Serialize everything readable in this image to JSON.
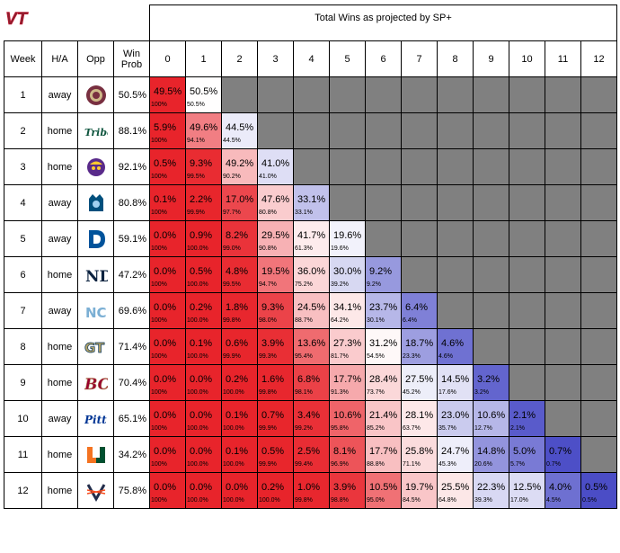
{
  "logo": {
    "text": "VT",
    "color": "#8b1f2e"
  },
  "header": {
    "title": "Total Wins as projected by SP+",
    "week": "Week",
    "ha": "H/A",
    "opp": "Opp",
    "winprob_line1": "Win",
    "winprob_line2": "Prob",
    "win_columns": [
      "0",
      "1",
      "2",
      "3",
      "4",
      "5",
      "6",
      "7",
      "8",
      "9",
      "10",
      "11",
      "12"
    ]
  },
  "colors": {
    "red": "#e8242b",
    "white": "#ffffff",
    "blue": "#4749c5",
    "gray": "#808080"
  },
  "games": [
    {
      "week": "1",
      "ha": "away",
      "opp_icon": "fsu-seminole-icon",
      "win_prob": "50.5%"
    },
    {
      "week": "2",
      "ha": "home",
      "opp_icon": "wm-tribe-icon",
      "win_prob": "88.1%"
    },
    {
      "week": "3",
      "ha": "home",
      "opp_icon": "ecu-pirate-icon",
      "win_prob": "92.1%"
    },
    {
      "week": "4",
      "ha": "away",
      "opp_icon": "odu-monarch-icon",
      "win_prob": "80.8%"
    },
    {
      "week": "5",
      "ha": "away",
      "opp_icon": "duke-d-icon",
      "win_prob": "59.1%"
    },
    {
      "week": "6",
      "ha": "home",
      "opp_icon": "notre-dame-nd-icon",
      "win_prob": "47.2%"
    },
    {
      "week": "7",
      "ha": "away",
      "opp_icon": "unc-nc-icon",
      "win_prob": "69.6%"
    },
    {
      "week": "8",
      "ha": "home",
      "opp_icon": "georgia-tech-gt-icon",
      "win_prob": "71.4%"
    },
    {
      "week": "9",
      "ha": "home",
      "opp_icon": "boston-college-bc-icon",
      "win_prob": "70.4%"
    },
    {
      "week": "10",
      "ha": "away",
      "opp_icon": "pitt-script-icon",
      "win_prob": "65.1%"
    },
    {
      "week": "11",
      "ha": "home",
      "opp_icon": "miami-u-icon",
      "win_prob": "34.2%"
    },
    {
      "week": "12",
      "ha": "home",
      "opp_icon": "virginia-sabres-icon",
      "win_prob": "75.8%"
    }
  ],
  "chart_data": {
    "type": "heatmap",
    "title": "Total Wins as projected by SP+",
    "x_label": "",
    "categories": [
      "0",
      "1",
      "2",
      "3",
      "4",
      "5",
      "6",
      "7",
      "8",
      "9",
      "10",
      "11",
      "12"
    ],
    "rows": [
      "1",
      "2",
      "3",
      "4",
      "5",
      "6",
      "7",
      "8",
      "9",
      "10",
      "11",
      "12"
    ],
    "probabilities": [
      [
        "49.5%",
        "50.5%"
      ],
      [
        "5.9%",
        "49.6%",
        "44.5%"
      ],
      [
        "0.5%",
        "9.3%",
        "49.2%",
        "41.0%"
      ],
      [
        "0.1%",
        "2.2%",
        "17.0%",
        "47.6%",
        "33.1%"
      ],
      [
        "0.0%",
        "0.9%",
        "8.2%",
        "29.5%",
        "41.7%",
        "19.6%"
      ],
      [
        "0.0%",
        "0.5%",
        "4.8%",
        "19.5%",
        "36.0%",
        "30.0%",
        "9.2%"
      ],
      [
        "0.0%",
        "0.2%",
        "1.8%",
        "9.3%",
        "24.5%",
        "34.1%",
        "23.7%",
        "6.4%"
      ],
      [
        "0.0%",
        "0.1%",
        "0.6%",
        "3.9%",
        "13.6%",
        "27.3%",
        "31.2%",
        "18.7%",
        "4.6%"
      ],
      [
        "0.0%",
        "0.0%",
        "0.2%",
        "1.6%",
        "6.8%",
        "17.7%",
        "28.4%",
        "27.5%",
        "14.5%",
        "3.2%"
      ],
      [
        "0.0%",
        "0.0%",
        "0.1%",
        "0.7%",
        "3.4%",
        "10.6%",
        "21.4%",
        "28.1%",
        "23.0%",
        "10.6%",
        "2.1%"
      ],
      [
        "0.0%",
        "0.0%",
        "0.1%",
        "0.5%",
        "2.5%",
        "8.1%",
        "17.7%",
        "25.8%",
        "24.7%",
        "14.8%",
        "5.0%",
        "0.7%"
      ],
      [
        "0.0%",
        "0.0%",
        "0.0%",
        "0.2%",
        "1.0%",
        "3.9%",
        "10.5%",
        "19.7%",
        "25.5%",
        "22.3%",
        "12.5%",
        "4.0%",
        "0.5%"
      ]
    ],
    "cumulative": [
      [
        "100%",
        "50.5%"
      ],
      [
        "100%",
        "94.1%",
        "44.5%"
      ],
      [
        "100%",
        "99.5%",
        "90.2%",
        "41.0%"
      ],
      [
        "100%",
        "99.9%",
        "97.7%",
        "80.8%",
        "33.1%"
      ],
      [
        "100%",
        "100.0%",
        "99.0%",
        "90.8%",
        "61.3%",
        "19.6%"
      ],
      [
        "100%",
        "100.0%",
        "99.5%",
        "94.7%",
        "75.2%",
        "39.2%",
        "9.2%"
      ],
      [
        "100%",
        "100.0%",
        "99.8%",
        "98.0%",
        "88.7%",
        "64.2%",
        "30.1%",
        "6.4%"
      ],
      [
        "100%",
        "100.0%",
        "99.9%",
        "99.3%",
        "95.4%",
        "81.7%",
        "54.5%",
        "23.3%",
        "4.6%"
      ],
      [
        "100%",
        "100.0%",
        "100.0%",
        "99.8%",
        "98.1%",
        "91.3%",
        "73.7%",
        "45.2%",
        "17.6%",
        "3.2%"
      ],
      [
        "100%",
        "100.0%",
        "100.0%",
        "99.9%",
        "99.2%",
        "95.8%",
        "85.2%",
        "63.7%",
        "35.7%",
        "12.7%",
        "2.1%"
      ],
      [
        "100%",
        "100.0%",
        "100.0%",
        "99.9%",
        "99.4%",
        "96.9%",
        "88.8%",
        "71.1%",
        "45.3%",
        "20.6%",
        "5.7%",
        "0.7%"
      ],
      [
        "100%",
        "100.0%",
        "100.0%",
        "100.0%",
        "99.8%",
        "98.8%",
        "95.0%",
        "84.5%",
        "64.8%",
        "39.3%",
        "17.0%",
        "4.5%",
        "0.5%"
      ]
    ]
  }
}
